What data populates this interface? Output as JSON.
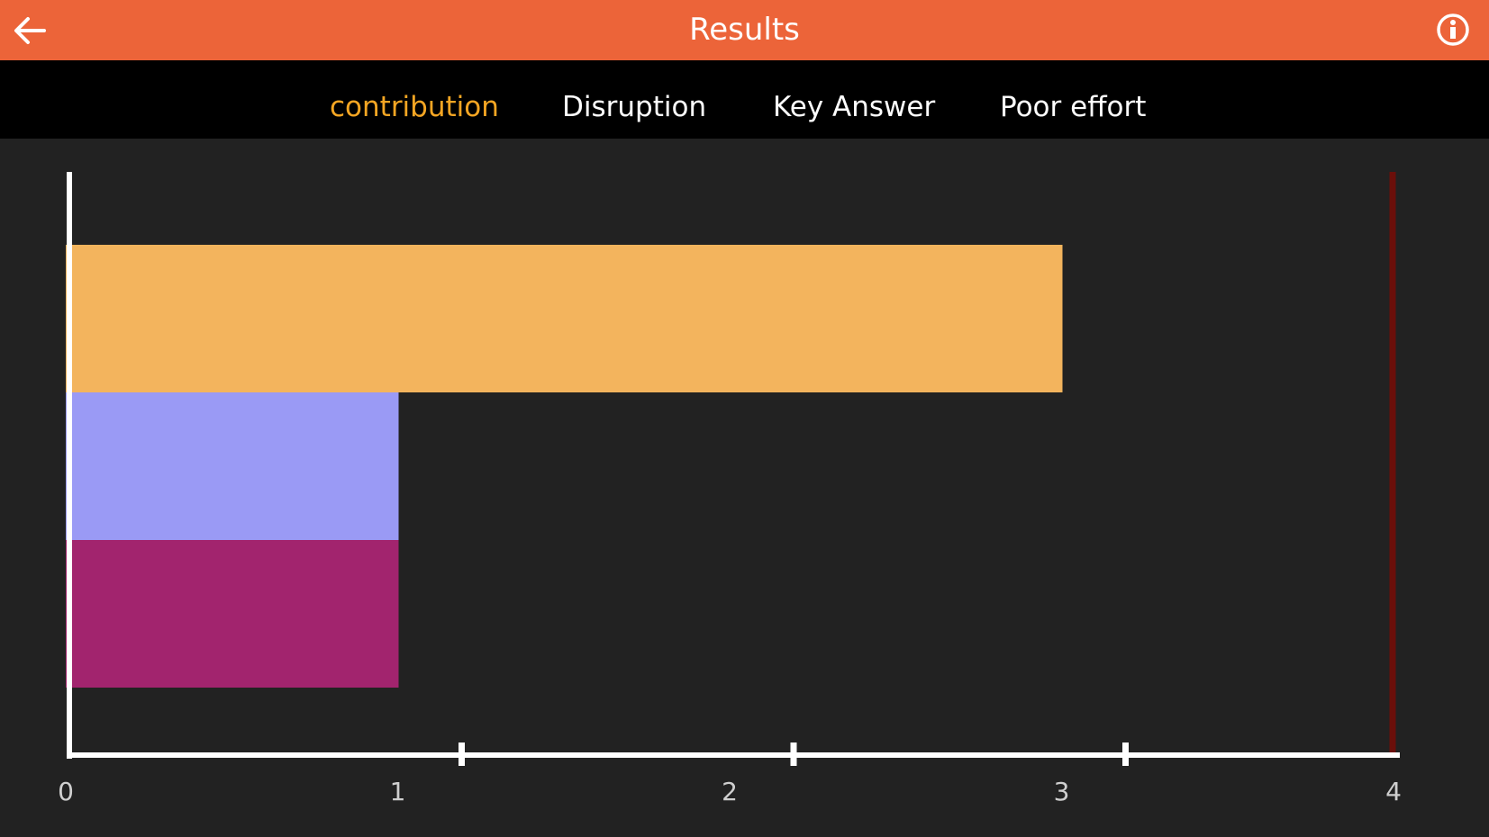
{
  "header": {
    "title": "Results",
    "background": "#EC6439"
  },
  "tabs": [
    {
      "label": "contribution",
      "active": true
    },
    {
      "label": "Disruption",
      "active": false
    },
    {
      "label": "Key Answer",
      "active": false
    },
    {
      "label": "Poor effort",
      "active": false
    }
  ],
  "chart_data": {
    "type": "bar",
    "orientation": "horizontal",
    "series": [
      {
        "value": 3,
        "color": "#F3B45D"
      },
      {
        "value": 1,
        "color": "#9A9AF5"
      },
      {
        "value": 1,
        "color": "#A2246E"
      }
    ],
    "xlim": [
      0,
      4
    ],
    "xticks": [
      "0",
      "1",
      "2",
      "3",
      "4"
    ],
    "max_line": {
      "value": 4,
      "color": "#6B0F0A"
    },
    "axis_color": "#FFFFFF",
    "background": "#222222"
  }
}
